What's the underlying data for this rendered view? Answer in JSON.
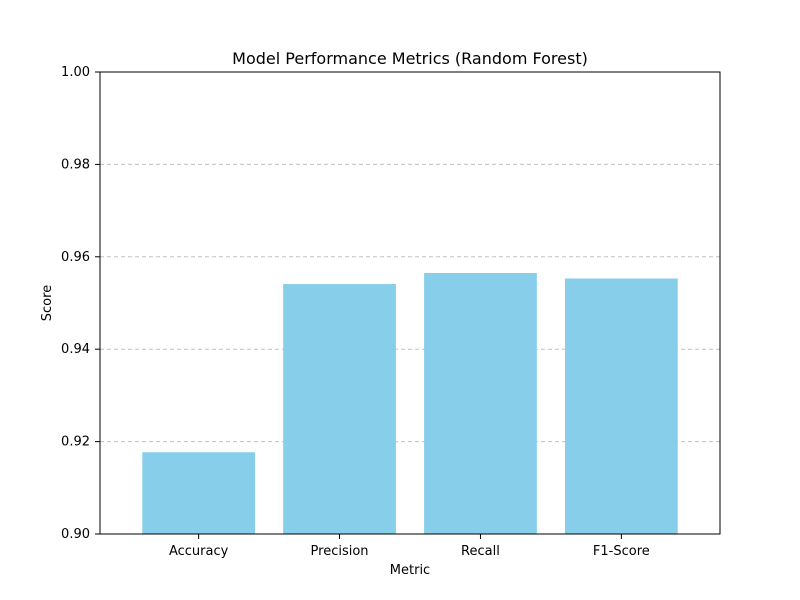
{
  "chart_data": {
    "type": "bar",
    "title": "Model Performance Metrics (Random Forest)",
    "xlabel": "Metric",
    "ylabel": "Score",
    "categories": [
      "Accuracy",
      "Precision",
      "Recall",
      "F1-Score"
    ],
    "values": [
      0.9177,
      0.9541,
      0.9565,
      0.9553
    ],
    "ylim": [
      0.9,
      1.0
    ],
    "yticks": [
      "0.90",
      "0.92",
      "0.94",
      "0.96",
      "0.98",
      "1.00"
    ],
    "grid": "y-axis dashed",
    "colors": {
      "bar": "#87CEEB",
      "grid": "#c0c0c0",
      "axis": "#000000"
    }
  }
}
